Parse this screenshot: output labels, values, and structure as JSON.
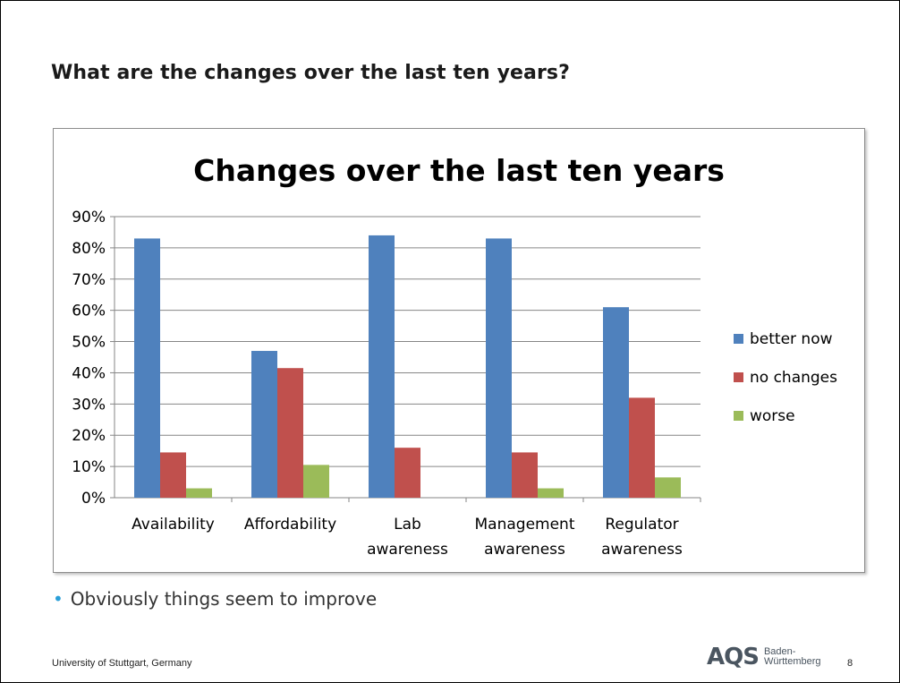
{
  "slide": {
    "title": "What are the changes over the last ten years?",
    "bullet": "Obviously things seem to improve",
    "footer": "University of Stuttgart, Germany",
    "logo_mark": "AQS",
    "logo_line1": "Baden-",
    "logo_line2": "Württemberg",
    "page_number": "8"
  },
  "chart_data": {
    "type": "bar",
    "title": "Changes over the last ten years",
    "categories": [
      [
        "Availability"
      ],
      [
        "Affordability"
      ],
      [
        "Lab",
        "awareness"
      ],
      [
        "Management",
        "awareness"
      ],
      [
        "Regulator",
        "awareness"
      ]
    ],
    "series": [
      {
        "name": "better now",
        "color": "#4f81bd",
        "values": [
          0.83,
          0.47,
          0.84,
          0.83,
          0.61
        ]
      },
      {
        "name": "no changes",
        "color": "#c0504d",
        "values": [
          0.145,
          0.415,
          0.16,
          0.145,
          0.32
        ]
      },
      {
        "name": "worse",
        "color": "#9bbb59",
        "values": [
          0.03,
          0.105,
          0,
          0.03,
          0.065
        ]
      }
    ],
    "yticks": [
      "0%",
      "10%",
      "20%",
      "30%",
      "40%",
      "50%",
      "60%",
      "70%",
      "80%",
      "90%"
    ],
    "ylim": [
      0,
      0.9
    ],
    "legend_position": "right",
    "grid": true
  }
}
